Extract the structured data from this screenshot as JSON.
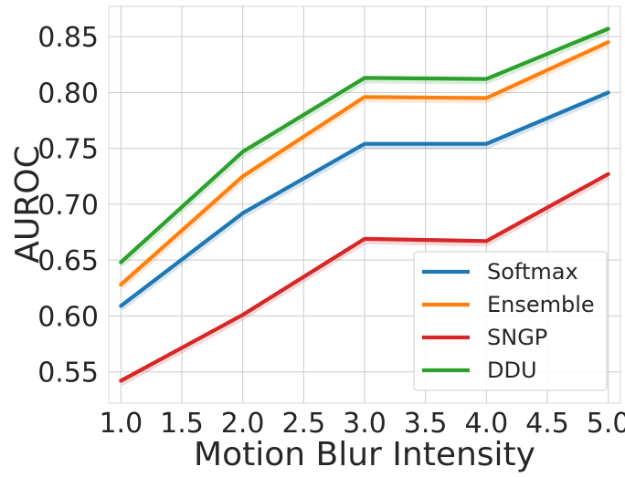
{
  "chart_data": {
    "type": "line",
    "xlabel": "Motion Blur Intensity",
    "ylabel": "AUROC",
    "x": [
      1.0,
      2.0,
      3.0,
      4.0,
      5.0
    ],
    "xlim": [
      0.9,
      5.1
    ],
    "ylim": [
      0.522,
      0.877
    ],
    "xticks": [
      "1.0",
      "1.5",
      "2.0",
      "2.5",
      "3.0",
      "3.5",
      "4.0",
      "4.5",
      "5.0"
    ],
    "yticks": [
      "0.55",
      "0.60",
      "0.65",
      "0.70",
      "0.75",
      "0.80",
      "0.85"
    ],
    "grid": true,
    "legend_position": "lower-right",
    "series": [
      {
        "name": "Softmax",
        "color": "#1f77b4",
        "values": [
          0.609,
          0.692,
          0.754,
          0.754,
          0.8
        ]
      },
      {
        "name": "Ensemble",
        "color": "#ff7f0e",
        "values": [
          0.628,
          0.725,
          0.796,
          0.795,
          0.845
        ]
      },
      {
        "name": "SNGP",
        "color": "#d62728",
        "values": [
          0.542,
          0.601,
          0.669,
          0.667,
          0.727
        ]
      },
      {
        "name": "DDU",
        "color": "#2ca02c",
        "values": [
          0.648,
          0.747,
          0.813,
          0.812,
          0.857
        ]
      }
    ]
  }
}
